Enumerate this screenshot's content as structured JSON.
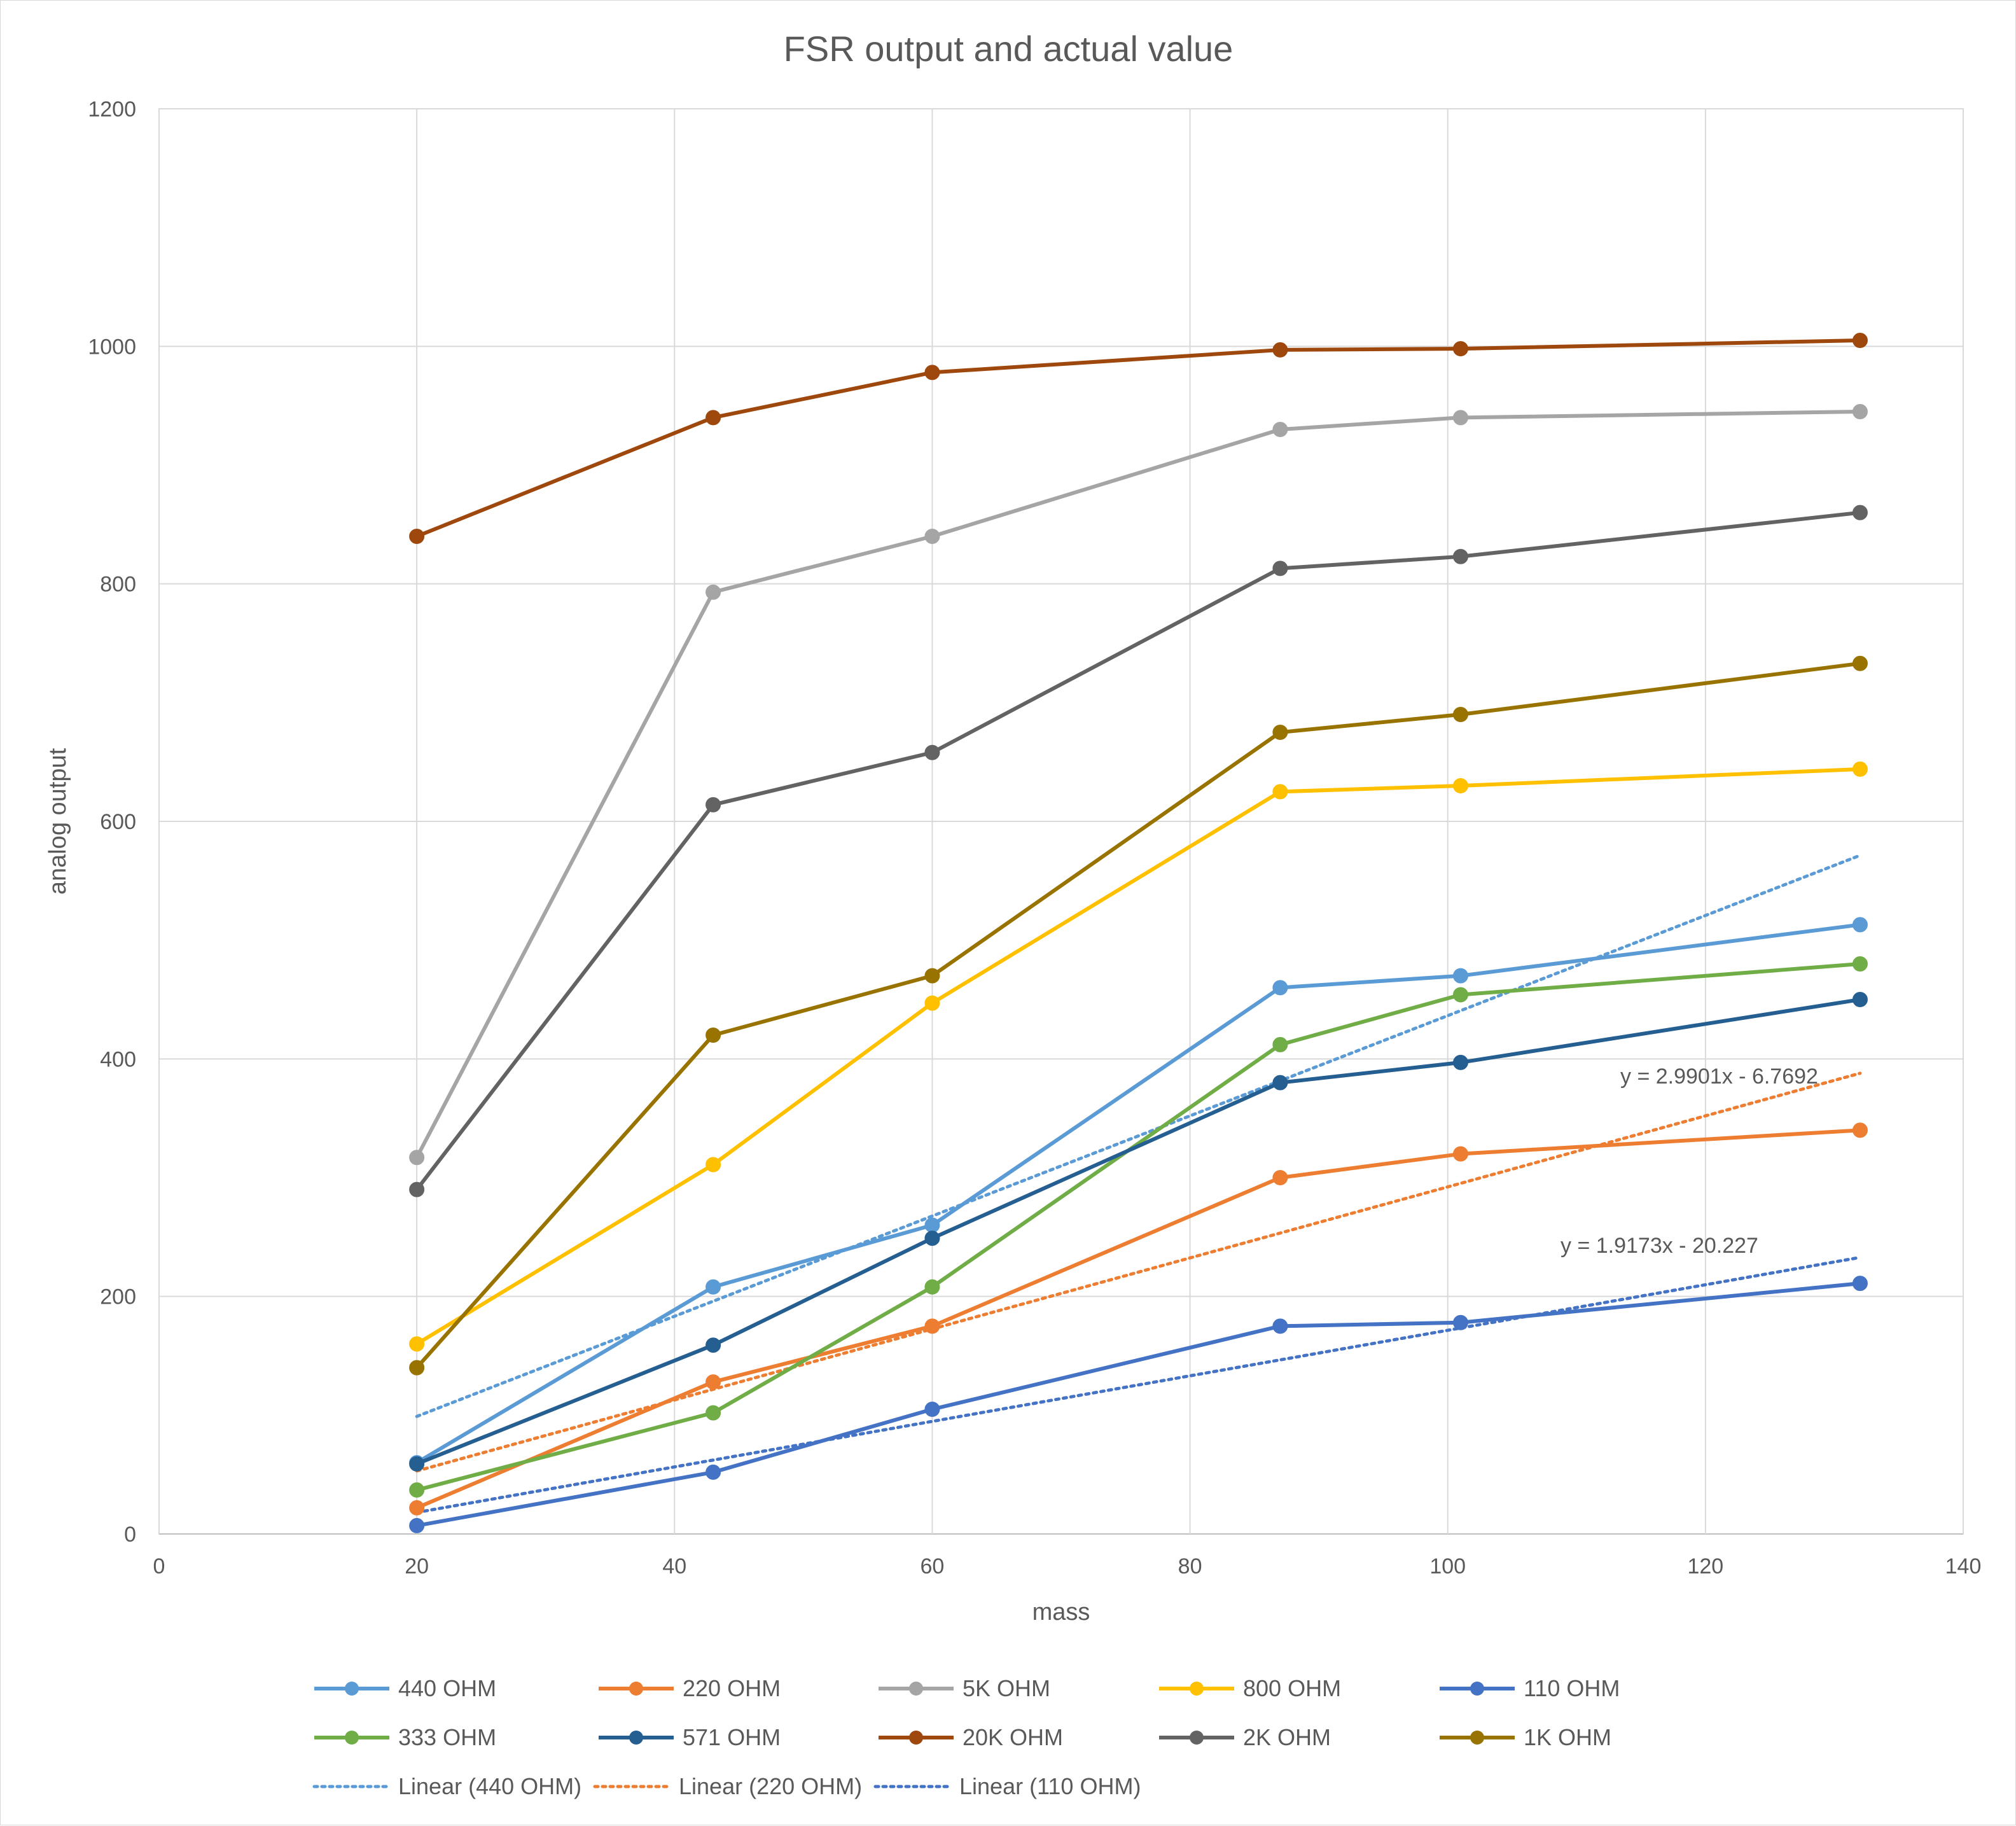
{
  "chart_data": {
    "type": "line",
    "title": "FSR output and actual value",
    "xlabel": "mass",
    "ylabel": "analog output",
    "xlim": [
      0,
      140
    ],
    "ylim": [
      0,
      1200
    ],
    "x_ticks": [
      "0",
      "20",
      "40",
      "60",
      "80",
      "100",
      "120",
      "140"
    ],
    "y_ticks": [
      "0",
      "200",
      "400",
      "600",
      "800",
      "1000",
      "1200"
    ],
    "grid": true,
    "legend_position": "bottom",
    "x": [
      20,
      43,
      60,
      87,
      101,
      132
    ],
    "series": [
      {
        "name": "440 OHM",
        "color": "#5B9BD5",
        "values": [
          60,
          208,
          260,
          460,
          470,
          513
        ]
      },
      {
        "name": "220 OHM",
        "color": "#ED7D31",
        "values": [
          22,
          128,
          175,
          300,
          320,
          340
        ]
      },
      {
        "name": "5K OHM",
        "color": "#A5A5A5",
        "values": [
          317,
          793,
          840,
          930,
          940,
          945
        ]
      },
      {
        "name": "800 OHM",
        "color": "#FFC000",
        "values": [
          160,
          311,
          447,
          625,
          630,
          644
        ]
      },
      {
        "name": "110 OHM",
        "color": "#4472C4",
        "values": [
          7,
          52,
          105,
          175,
          178,
          211
        ]
      },
      {
        "name": "333 OHM",
        "color": "#70AD47",
        "values": [
          37,
          102,
          208,
          412,
          454,
          480
        ]
      },
      {
        "name": "571 OHM",
        "color": "#255E91",
        "values": [
          59,
          159,
          249,
          380,
          397,
          450
        ]
      },
      {
        "name": "20K OHM",
        "color": "#9E480E",
        "values": [
          840,
          940,
          978,
          997,
          998,
          1005
        ]
      },
      {
        "name": "2K OHM",
        "color": "#636363",
        "values": [
          290,
          614,
          658,
          813,
          823,
          860
        ]
      },
      {
        "name": "1K OHM",
        "color": "#997300",
        "values": [
          140,
          420,
          470,
          675,
          690,
          733
        ]
      }
    ],
    "trendlines": [
      {
        "name": "Linear (440 OHM)",
        "color": "#5B9BD5",
        "slope": 4.218,
        "intercept": 14.6,
        "x_range": [
          20,
          132
        ]
      },
      {
        "name": "Linear (220 OHM)",
        "color": "#ED7D31",
        "slope": 2.9901,
        "intercept": -6.7692,
        "x_range": [
          20,
          132
        ],
        "equation": "y = 2.9901x - 6.7692"
      },
      {
        "name": "Linear (110 OHM)",
        "color": "#4472C4",
        "slope": 1.9173,
        "intercept": -20.227,
        "x_range": [
          20,
          132
        ],
        "equation": "y = 1.9173x - 20.227"
      }
    ]
  }
}
